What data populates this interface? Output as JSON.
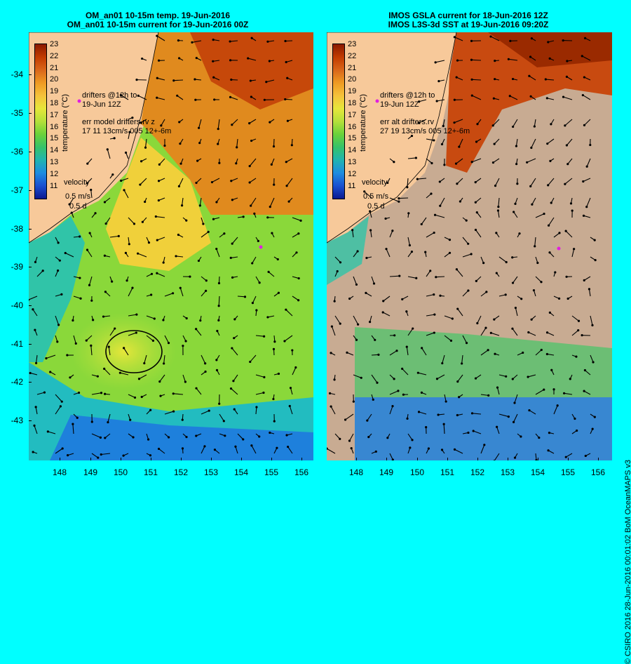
{
  "titles": {
    "left_line1": "OM_an01 10-15m temp. 19-Jun-2016",
    "left_line2": "OM_an01 10-15m current for 19-Jun-2016 00Z",
    "right_line1": "IMOS GSLA current for 18-Jun-2016 12Z",
    "right_line2": "IMOS L3S-3d SST at 19-Jun-2016 09:20Z"
  },
  "colorbar": {
    "title": "temperature (°C)",
    "levels": [
      "23",
      "22",
      "21",
      "20",
      "19",
      "18",
      "17",
      "16",
      "15",
      "14",
      "13",
      "12",
      "11"
    ],
    "colors": [
      "#8a1a00",
      "#c23b00",
      "#d9661a",
      "#ee9a22",
      "#f5c23a",
      "#e6e63a",
      "#b4e03a",
      "#6ad23a",
      "#35c26a",
      "#20b4b0",
      "#1e8ce0",
      "#1a50d0",
      "#0a1890"
    ]
  },
  "left_notes": {
    "drifters": "drifters @12h to\n19-Jun 12Z",
    "err": "err model drifters.rv z\n17 11 13cm/s 005 12+-6m",
    "velocity": "velocity",
    "vel_scale1": "0.5 m/s",
    "vel_scale2": "0.5 d"
  },
  "right_notes": {
    "drifters": "drifters @12h to\n19-Jun 12Z",
    "err": "err alt drifters.rv\n27 19 13cm/s 005 12+-6m",
    "velocity": "velocity",
    "vel_scale1": "0.5 m/s",
    "vel_scale2": "0.5 d"
  },
  "credit": "© CSIRO 2016   28-Jun-2016 00:01:02 BoM OceanMAPS v3",
  "chart_data": {
    "type": "heatmap",
    "panels": [
      "model temperature with currents",
      "satellite SST with GSLA currents"
    ],
    "x_ticks": [
      "148",
      "149",
      "150",
      "151",
      "152",
      "153",
      "154",
      "155",
      "156"
    ],
    "y_ticks": [
      "-34",
      "-35",
      "-36",
      "-37",
      "-38",
      "-39",
      "-40",
      "-41",
      "-42",
      "-43"
    ],
    "xlim": [
      147.05,
      156.6
    ],
    "ylim": [
      -44,
      -33.1
    ],
    "color_range": [
      11,
      23
    ],
    "colormap": "blue-green-yellow-orange-red",
    "cloud_mask_color": "#c8ab92",
    "land_color": "#f7c99a"
  }
}
